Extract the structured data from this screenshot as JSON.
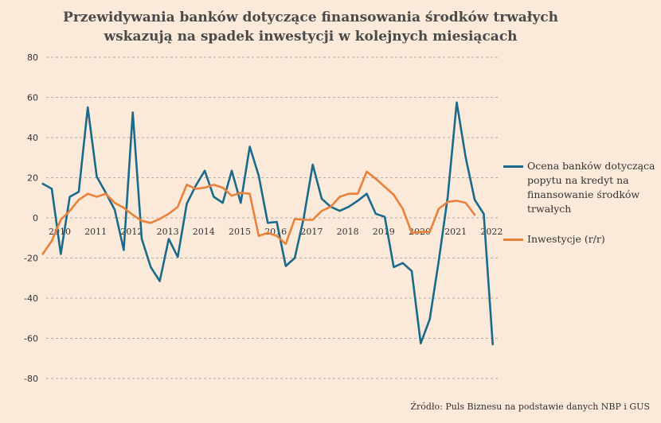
{
  "chart_data": {
    "type": "line",
    "title_lines": [
      "Przewidywania banków dotyczące finansowania środków trwałych",
      "wskazują na spadek inwestycji w kolejnych miesiącach"
    ],
    "source": "Źródło: Puls Biznesu na podstawie danych NBP i GUS",
    "ylim": [
      -80,
      80
    ],
    "y_ticks": [
      80,
      60,
      40,
      20,
      0,
      -20,
      -40,
      -60,
      -80
    ],
    "x_tick_labels": [
      "2010",
      "2011",
      "2012",
      "2013",
      "2014",
      "2015",
      "2016",
      "2017",
      "2018",
      "2019",
      "2020",
      "2021",
      "2022"
    ],
    "x_start_year": 2010,
    "grid": true,
    "legend_placement": "right",
    "colors": {
      "series_1": "#1a6a8c",
      "series_2": "#e8823a",
      "grid": "#9a9a9a",
      "background": "#fbe9da"
    },
    "series": [
      {
        "name": "Ocena banków dotycząca popytu na kredyt na finansowanie środków trwałych",
        "color": "#1a6a8c",
        "points": [
          [
            2009.75,
            17
          ],
          [
            2010.0,
            14.5
          ],
          [
            2010.25,
            -18
          ],
          [
            2010.5,
            10.5
          ],
          [
            2010.75,
            13
          ],
          [
            2011.0,
            55
          ],
          [
            2011.25,
            20.5
          ],
          [
            2011.5,
            12.5
          ],
          [
            2011.75,
            4
          ],
          [
            2012.0,
            -16
          ],
          [
            2012.25,
            52.5
          ],
          [
            2012.5,
            -10.5
          ],
          [
            2012.75,
            -24.5
          ],
          [
            2013.0,
            -31.5
          ],
          [
            2013.25,
            -10.5
          ],
          [
            2013.5,
            -19.5
          ],
          [
            2013.75,
            7
          ],
          [
            2014.0,
            16
          ],
          [
            2014.25,
            23.5
          ],
          [
            2014.5,
            10.5
          ],
          [
            2014.75,
            7.5
          ],
          [
            2015.0,
            23.5
          ],
          [
            2015.25,
            7.5
          ],
          [
            2015.5,
            35.5
          ],
          [
            2015.75,
            21
          ],
          [
            2016.0,
            -2.5
          ],
          [
            2016.25,
            -2
          ],
          [
            2016.5,
            -24
          ],
          [
            2016.75,
            -20
          ],
          [
            2017.0,
            0
          ],
          [
            2017.25,
            26.5
          ],
          [
            2017.5,
            9.5
          ],
          [
            2017.75,
            5.5
          ],
          [
            2018.0,
            3.5
          ],
          [
            2018.25,
            5.5
          ],
          [
            2018.5,
            8.5
          ],
          [
            2018.75,
            12
          ],
          [
            2019.0,
            2
          ],
          [
            2019.25,
            0.5
          ],
          [
            2019.5,
            -24.5
          ],
          [
            2019.75,
            -22.5
          ],
          [
            2020.0,
            -26.5
          ],
          [
            2020.25,
            -62.5
          ],
          [
            2020.5,
            -50.5
          ],
          [
            2020.75,
            -21.5
          ],
          [
            2021.0,
            10.5
          ],
          [
            2021.25,
            57.5
          ],
          [
            2021.5,
            30
          ],
          [
            2021.75,
            9
          ],
          [
            2022.0,
            2
          ],
          [
            2022.25,
            -63
          ]
        ]
      },
      {
        "name": "Inwestycje (r/r)",
        "color": "#e8823a",
        "points": [
          [
            2009.75,
            -18
          ],
          [
            2010.0,
            -11.5
          ],
          [
            2010.25,
            -1
          ],
          [
            2010.5,
            3.5
          ],
          [
            2010.75,
            9
          ],
          [
            2011.0,
            12
          ],
          [
            2011.25,
            10.5
          ],
          [
            2011.5,
            12
          ],
          [
            2011.75,
            7.5
          ],
          [
            2012.0,
            5
          ],
          [
            2012.25,
            1.5
          ],
          [
            2012.5,
            -1.5
          ],
          [
            2012.75,
            -2.5
          ],
          [
            2013.0,
            -0.5
          ],
          [
            2013.25,
            2
          ],
          [
            2013.5,
            5.5
          ],
          [
            2013.75,
            16.5
          ],
          [
            2014.0,
            14.5
          ],
          [
            2014.25,
            15
          ],
          [
            2014.5,
            16.5
          ],
          [
            2014.75,
            15
          ],
          [
            2015.0,
            11
          ],
          [
            2015.25,
            12.5
          ],
          [
            2015.5,
            12
          ],
          [
            2015.75,
            -9
          ],
          [
            2016.0,
            -7.5
          ],
          [
            2016.25,
            -9
          ],
          [
            2016.5,
            -13
          ],
          [
            2016.75,
            -0.5
          ],
          [
            2017.0,
            -1
          ],
          [
            2017.25,
            -1
          ],
          [
            2017.5,
            3.5
          ],
          [
            2017.75,
            5.5
          ],
          [
            2018.0,
            10.5
          ],
          [
            2018.25,
            12
          ],
          [
            2018.5,
            12
          ],
          [
            2018.75,
            23
          ],
          [
            2019.0,
            19.5
          ],
          [
            2019.25,
            15.5
          ],
          [
            2019.5,
            11.5
          ],
          [
            2019.75,
            4.5
          ],
          [
            2020.0,
            -7.5
          ],
          [
            2020.25,
            -7
          ],
          [
            2020.5,
            -7
          ],
          [
            2020.75,
            4.5
          ],
          [
            2021.0,
            8
          ],
          [
            2021.25,
            8.5
          ],
          [
            2021.5,
            7.5
          ],
          [
            2021.75,
            1.5
          ]
        ]
      }
    ]
  }
}
